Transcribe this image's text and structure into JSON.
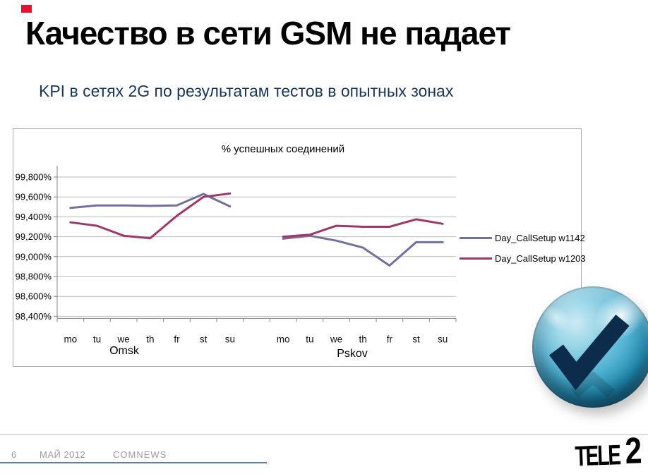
{
  "slide": {
    "title": "Качество в сети GSM не падает",
    "subtitle": "KPI в сетях 2G по результатам тестов в опытных зонах",
    "footer": {
      "page_number": "6",
      "date": "МАЙ 2012",
      "brand": "COMNEWS",
      "logo_main": "TELE",
      "logo_number": "2"
    },
    "colors": {
      "accent_red": "#e8112d",
      "footer_line": "#5b7fad",
      "subtitle_blue": "#17365d"
    }
  },
  "chart_data": {
    "type": "line",
    "title": "% успешных соединений",
    "categories": [
      "mo",
      "tu",
      "we",
      "th",
      "fr",
      "st",
      "su",
      "",
      "mo",
      "tu",
      "we",
      "th",
      "fr",
      "st",
      "su"
    ],
    "group_labels": [
      "Omsk",
      "Pskov"
    ],
    "series": [
      {
        "name": "Day_CallSetup w1142",
        "color": "#70709e",
        "values": [
          99.49,
          99.515,
          99.515,
          99.51,
          99.515,
          99.63,
          99.505,
          null,
          99.18,
          99.21,
          99.16,
          99.09,
          98.91,
          99.145,
          99.145
        ]
      },
      {
        "name": "Day_CallSetup w1203",
        "color": "#a03768",
        "values": [
          99.345,
          99.31,
          99.21,
          99.185,
          99.41,
          99.6,
          99.635,
          null,
          99.2,
          99.22,
          99.31,
          99.3,
          99.3,
          99.375,
          99.33
        ]
      }
    ],
    "ylim": [
      98.4,
      99.8
    ],
    "ytick_step": 0.2,
    "ytick_labels": [
      "99,800%",
      "99,600%",
      "99,400%",
      "99,200%",
      "99,000%",
      "98,800%",
      "98,600%",
      "98,400%"
    ],
    "grid": "horizontal",
    "legend_position": "right"
  },
  "check_icon": {
    "name": "success-checkmark",
    "check_color": "#0d2c4c"
  }
}
